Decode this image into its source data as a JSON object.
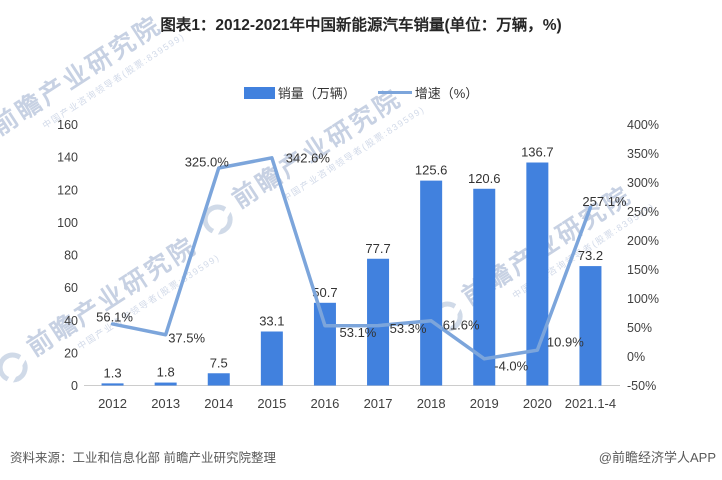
{
  "title": "图表1：2012-2021年中国新能源汽车销量(单位：万辆，%)",
  "legend": {
    "items": [
      {
        "label": "销量（万辆）",
        "type": "bar",
        "color": "#4181DE"
      },
      {
        "label": "增速（%）",
        "type": "line",
        "color": "#7CA5DB"
      }
    ]
  },
  "chart_data": {
    "type": "combo-bar-line",
    "categories": [
      "2012",
      "2013",
      "2014",
      "2015",
      "2016",
      "2017",
      "2018",
      "2019",
      "2020",
      "2021.1-4"
    ],
    "series": [
      {
        "name": "销量（万辆）",
        "type": "bar",
        "axis": "left",
        "color": "#4181DE",
        "values": [
          1.3,
          1.8,
          7.5,
          33.1,
          50.7,
          77.7,
          125.6,
          120.6,
          136.7,
          73.2
        ],
        "labels": [
          "1.3",
          "1.8",
          "7.5",
          "33.1",
          "50.7",
          "77.7",
          "125.6",
          "120.6",
          "136.7",
          "73.2"
        ]
      },
      {
        "name": "增速（%）",
        "type": "line",
        "axis": "right",
        "color": "#7CA5DB",
        "values": [
          56.1,
          37.5,
          325.0,
          342.6,
          53.1,
          53.3,
          61.6,
          -4.0,
          10.9,
          257.1
        ],
        "labels": [
          "56.1%",
          "37.5%",
          "325.0%",
          "342.6%",
          "53.1%",
          "53.3%",
          "61.6%",
          "-4.0%",
          "10.9%",
          "257.1%"
        ]
      }
    ],
    "left_axis": {
      "min": 0,
      "max": 160,
      "step": 20,
      "tick_labels": [
        "0",
        "20",
        "40",
        "60",
        "80",
        "100",
        "120",
        "140",
        "160"
      ]
    },
    "right_axis": {
      "min": -50,
      "max": 400,
      "step": 50,
      "tick_labels": [
        "-50%",
        "0%",
        "50%",
        "100%",
        "150%",
        "200%",
        "250%",
        "300%",
        "350%",
        "400%"
      ]
    },
    "grid": false,
    "legend_position": "top",
    "label_color": "#333333",
    "axis_tick_color": "#404040",
    "axis_line_color": "#cccccc"
  },
  "watermark": {
    "text": "前瞻产业研究院",
    "subtext": "中国产业咨询领导者(股票:839599)"
  },
  "footer": {
    "source": "资料来源：工业和信息化部 前瞻产业研究院整理",
    "credit": "@前瞻经济学人APP"
  }
}
